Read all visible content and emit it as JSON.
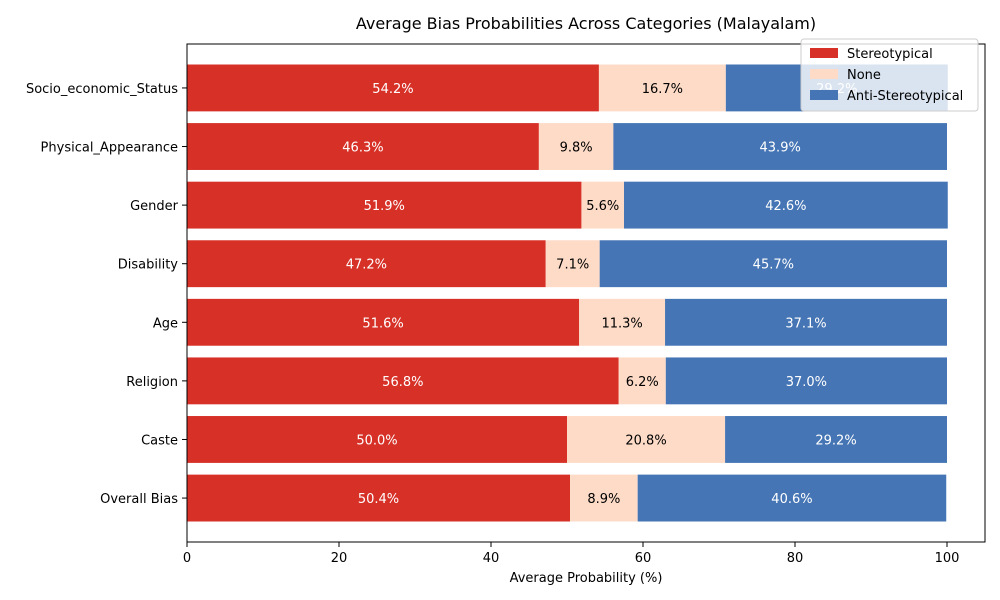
{
  "chart_data": {
    "type": "bar",
    "orientation": "horizontal",
    "stacked": true,
    "title": "Average Bias Probabilities Across Categories (Malayalam)",
    "xlabel": "Average Probability (%)",
    "ylabel": "",
    "xlim": [
      0,
      105
    ],
    "xticks": [
      0,
      20,
      40,
      60,
      80,
      100
    ],
    "grid": false,
    "legend_position": "top-right",
    "categories": [
      "Overall Bias",
      "Caste",
      "Religion",
      "Age",
      "Disability",
      "Gender",
      "Physical_Appearance",
      "Socio_economic_Status"
    ],
    "series": [
      {
        "name": "Stereotypical",
        "color": "#d73027",
        "label_color": "#ffffff",
        "values": [
          50.4,
          50.0,
          56.8,
          51.6,
          47.2,
          51.9,
          46.3,
          54.2
        ]
      },
      {
        "name": "None",
        "color": "#fddbc7",
        "label_color": "#000000",
        "values": [
          8.9,
          20.8,
          6.2,
          11.3,
          7.1,
          5.6,
          9.8,
          16.7
        ]
      },
      {
        "name": "Anti-Stereotypical",
        "color": "#4575b4",
        "label_color": "#ffffff",
        "values": [
          40.6,
          29.2,
          37.0,
          37.1,
          45.7,
          42.6,
          43.9,
          29.2
        ]
      }
    ],
    "value_labels": [
      [
        "50.4%",
        "50.0%",
        "56.8%",
        "51.6%",
        "47.2%",
        "51.9%",
        "46.3%",
        "54.2%"
      ],
      [
        "8.9%",
        "20.8%",
        "6.2%",
        "11.3%",
        "7.1%",
        "5.6%",
        "9.8%",
        "16.7%"
      ],
      [
        "40.6%",
        "29.2%",
        "37.0%",
        "37.1%",
        "45.7%",
        "42.6%",
        "43.9%",
        "29.2%"
      ]
    ]
  }
}
